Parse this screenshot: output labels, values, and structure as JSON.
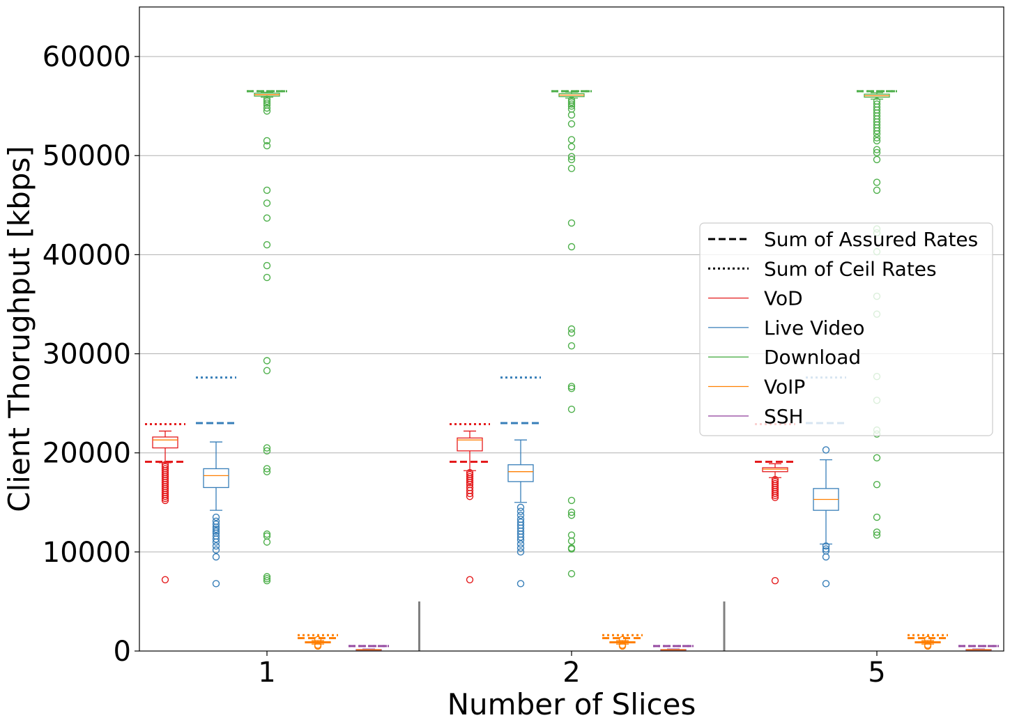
{
  "chart_data": {
    "type": "box",
    "title": "",
    "xlabel": "Number of Slices",
    "ylabel": "Client Thorughput [kbps]",
    "categories": [
      "1",
      "2",
      "5"
    ],
    "ylim": [
      0,
      65000
    ],
    "yticks": [
      0,
      10000,
      20000,
      30000,
      40000,
      50000,
      60000
    ],
    "grid": "y",
    "legend_position": "right",
    "legend": [
      {
        "label": "Sum of Assured Rates",
        "style": "dashed",
        "color": "#000000"
      },
      {
        "label": "Sum of Ceil Rates",
        "style": "dotted",
        "color": "#000000"
      },
      {
        "label": "VoD",
        "style": "solid",
        "color": "#e41a1c"
      },
      {
        "label": "Live Video",
        "style": "solid",
        "color": "#377eb8"
      },
      {
        "label": "Download",
        "style": "solid",
        "color": "#4daf4a"
      },
      {
        "label": "VoIP",
        "style": "solid",
        "color": "#ff7f00"
      },
      {
        "label": "SSH",
        "style": "solid",
        "color": "#984ea3"
      }
    ],
    "median_color": "#ff7f00",
    "series": [
      {
        "name": "VoD",
        "color": "#e41a1c",
        "assured": 19100,
        "ceil": 22900,
        "boxes": [
          {
            "category": "1",
            "whislo": 19000,
            "q1": 20500,
            "med": 21300,
            "q3": 21600,
            "whishi": 22200,
            "fliers": [
              18800,
              18600,
              18400,
              18200,
              18000,
              17800,
              17600,
              17400,
              17200,
              17000,
              16800,
              16600,
              16400,
              16200,
              16000,
              15800,
              15600,
              15400,
              15200,
              7200
            ]
          },
          {
            "category": "2",
            "whislo": 18200,
            "q1": 20200,
            "med": 21300,
            "q3": 21500,
            "whishi": 22200,
            "fliers": [
              18000,
              17800,
              17600,
              17400,
              17200,
              17000,
              16800,
              16500,
              16200,
              15900,
              15600,
              7200
            ]
          },
          {
            "category": "5",
            "whislo": 17500,
            "q1": 18100,
            "med": 18350,
            "q3": 18500,
            "whishi": 18900,
            "fliers": [
              17300,
              17100,
              16900,
              16700,
              16500,
              16300,
              16100,
              15900,
              15700,
              15500,
              7100
            ]
          }
        ]
      },
      {
        "name": "Live Video",
        "color": "#377eb8",
        "assured": 23000,
        "ceil": 27600,
        "boxes": [
          {
            "category": "1",
            "whislo": 14200,
            "q1": 16500,
            "med": 17700,
            "q3": 18400,
            "whishi": 21100,
            "fliers": [
              13500,
              13100,
              12800,
              12500,
              12300,
              12100,
              11900,
              11600,
              11300,
              11000,
              10600,
              10200,
              9500,
              6800
            ]
          },
          {
            "category": "2",
            "whislo": 15000,
            "q1": 17100,
            "med": 18100,
            "q3": 18800,
            "whishi": 21300,
            "fliers": [
              14500,
              14100,
              13700,
              13300,
              13000,
              12700,
              12400,
              12100,
              11800,
              11500,
              11200,
              10800,
              10400,
              10000,
              6800
            ]
          },
          {
            "category": "5",
            "whislo": 10800,
            "q1": 14200,
            "med": 15300,
            "q3": 16400,
            "whishi": 19300,
            "fliers": [
              20300,
              10600,
              10300,
              10100,
              9500,
              6800
            ]
          }
        ]
      },
      {
        "name": "Download",
        "color": "#4daf4a",
        "assured": 56500,
        "ceil": 56500,
        "boxes": [
          {
            "category": "1",
            "whislo": 55900,
            "q1": 56000,
            "med": 56150,
            "q3": 56300,
            "whishi": 56400,
            "fliers": [
              55700,
              55500,
              55300,
              55100,
              54800,
              54500,
              51500,
              51000,
              46500,
              45200,
              43700,
              41000,
              38900,
              37700,
              29300,
              28300,
              20500,
              20200,
              18400,
              18100,
              11800,
              11600,
              11000,
              7500,
              7300,
              7100
            ]
          },
          {
            "category": "2",
            "whislo": 55800,
            "q1": 55950,
            "med": 56100,
            "q3": 56250,
            "whishi": 56400,
            "fliers": [
              55600,
              55400,
              55200,
              55000,
              54700,
              54100,
              53200,
              51600,
              50900,
              49900,
              49600,
              48700,
              43200,
              40800,
              32500,
              32100,
              30800,
              26700,
              26500,
              24400,
              15200,
              14000,
              13700,
              11700,
              11100,
              10400,
              10300,
              7800
            ]
          },
          {
            "category": "5",
            "whislo": 55700,
            "q1": 55900,
            "med": 56050,
            "q3": 56200,
            "whishi": 56350,
            "fliers": [
              55500,
              55200,
              54900,
              54600,
              54300,
              54000,
              53700,
              53400,
              53100,
              52800,
              52500,
              52200,
              51800,
              51500,
              50600,
              50300,
              49600,
              47300,
              46500,
              42600,
              42200,
              40300,
              35800,
              34000,
              27700,
              25300,
              22300,
              21900,
              19500,
              16800,
              13500,
              12000,
              11700
            ]
          }
        ]
      },
      {
        "name": "VoIP",
        "color": "#ff7f00",
        "assured": 1300,
        "ceil": 1600,
        "boxes": [
          {
            "category": "1",
            "whislo": 700,
            "q1": 820,
            "med": 880,
            "q3": 940,
            "whishi": 1050,
            "fliers": [
              600,
              500,
              1150
            ]
          },
          {
            "category": "2",
            "whislo": 700,
            "q1": 820,
            "med": 880,
            "q3": 940,
            "whishi": 1050,
            "fliers": [
              600,
              500,
              1150
            ]
          },
          {
            "category": "5",
            "whislo": 700,
            "q1": 820,
            "med": 880,
            "q3": 940,
            "whishi": 1050,
            "fliers": [
              600,
              500,
              1150
            ]
          }
        ]
      },
      {
        "name": "SSH",
        "color": "#984ea3",
        "assured": 500,
        "ceil": 500,
        "boxes": [
          {
            "category": "1",
            "whislo": 60,
            "q1": 90,
            "med": 120,
            "q3": 150,
            "whishi": 200,
            "fliers": []
          },
          {
            "category": "2",
            "whislo": 60,
            "q1": 90,
            "med": 120,
            "q3": 150,
            "whishi": 200,
            "fliers": []
          },
          {
            "category": "5",
            "whislo": 60,
            "q1": 90,
            "med": 120,
            "q3": 150,
            "whishi": 200,
            "fliers": []
          }
        ]
      }
    ],
    "group_separator_max": 5000,
    "separator_color": "#808080"
  }
}
